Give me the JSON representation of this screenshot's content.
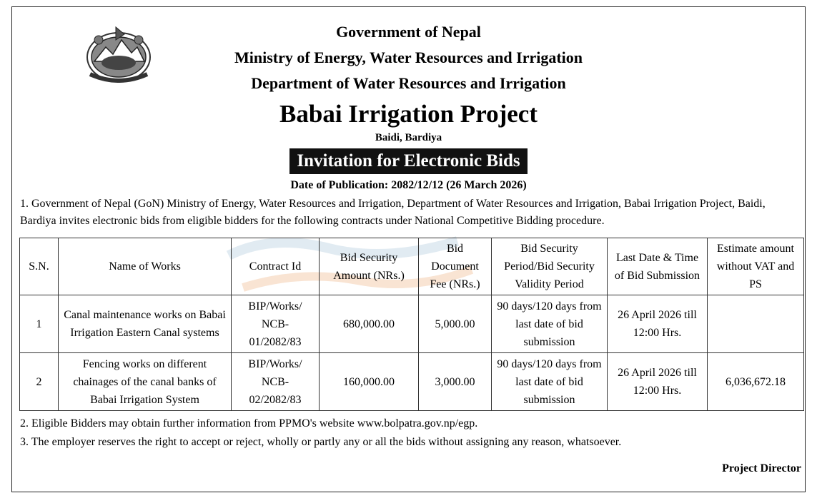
{
  "header": {
    "line1": "Government of Nepal",
    "line2": "Ministry of Energy, Water Resources and Irrigation",
    "line3": "Department of Water Resources and Irrigation",
    "project": "Babai Irrigation Project",
    "location": "Baidi, Bardiya",
    "banner": "Invitation for Electronic Bids",
    "publication": "Date of Publication: 2082/12/12 (26 March 2026)"
  },
  "paragraphs": {
    "p1": "1. Government of Nepal (GoN) Ministry of Energy, Water Resources and Irrigation, Department of Water Resources and Irrigation, Babai Irrigation Project, Baidi, Bardiya invites electronic bids from eligible bidders for the following contracts under National Competitive Bidding procedure.",
    "p2": "2. Eligible Bidders may obtain further information from PPMO's website www.bolpatra.gov.np/egp.",
    "p3": "3. The employer reserves the right to accept or reject, wholly or partly any or all the bids without assigning any reason, whatsoever."
  },
  "table": {
    "headers": [
      "S.N.",
      "Name of Works",
      "Contract Id",
      "Bid Security Amount (NRs.)",
      "Bid Document Fee (NRs.)",
      "Bid Security Period/Bid Security Validity Period",
      "Last Date & Time of Bid Submission",
      "Estimate amount without VAT and PS"
    ],
    "rows": [
      {
        "sn": "1",
        "name": "Canal maintenance works on Babai Irrigation Eastern Canal systems",
        "contract": "BIP/Works/ NCB- 01/2082/83",
        "security": "680,000.00",
        "fee": "5,000.00",
        "period": "90 days/120 days from last date of bid submission",
        "deadline": "26 April 2026 till 12:00 Hrs.",
        "estimate": ""
      },
      {
        "sn": "2",
        "name": "Fencing works on different chainages of the canal banks of Babai Irrigation System",
        "contract": "BIP/Works/ NCB- 02/2082/83",
        "security": "160,000.00",
        "fee": "3,000.00",
        "period": "90 days/120 days from last date of bid submission",
        "deadline": "26 April 2026 till 12:00 Hrs.",
        "estimate": "6,036,672.18"
      }
    ]
  },
  "signature": "Project Director",
  "colors": {
    "text": "#000000",
    "banner_bg": "#111111",
    "banner_text": "#ffffff",
    "watermark": "#c9dbe8"
  },
  "icons": {
    "emblem": "nepal-emblem-icon"
  }
}
